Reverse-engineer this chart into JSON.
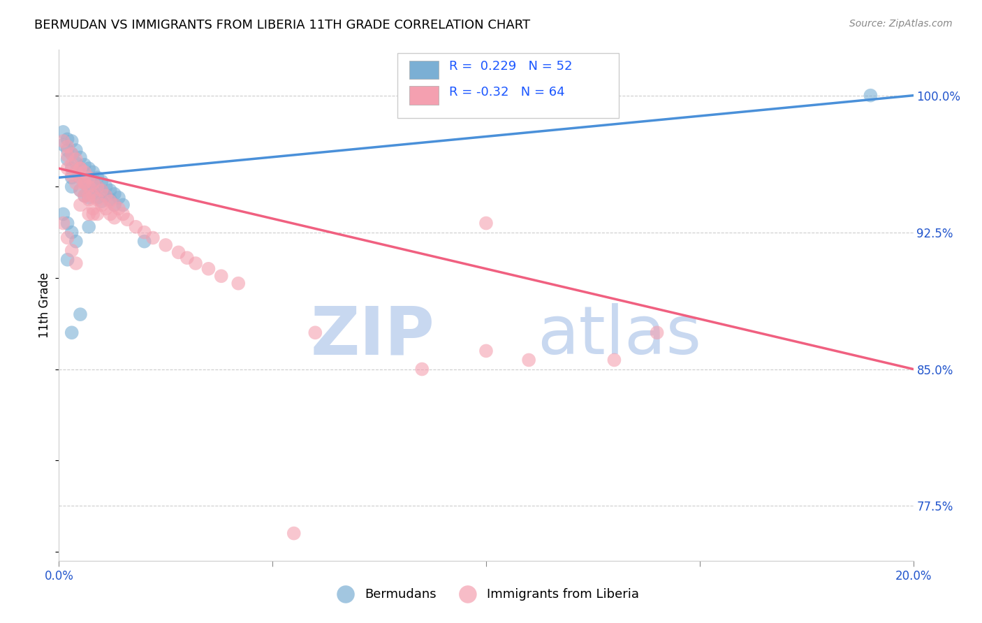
{
  "title": "BERMUDAN VS IMMIGRANTS FROM LIBERIA 11TH GRADE CORRELATION CHART",
  "source": "Source: ZipAtlas.com",
  "ylabel": "11th Grade",
  "ytick_labels": [
    "77.5%",
    "85.0%",
    "92.5%",
    "100.0%"
  ],
  "ytick_values": [
    0.775,
    0.85,
    0.925,
    1.0
  ],
  "xmin": 0.0,
  "xmax": 0.2,
  "ymin": 0.745,
  "ymax": 1.025,
  "bermuda_R": 0.229,
  "bermuda_N": 52,
  "liberia_R": -0.32,
  "liberia_N": 64,
  "bermuda_color": "#7bafd4",
  "liberia_color": "#f4a0b0",
  "trend_blue": "#4a90d9",
  "trend_pink": "#f06080",
  "legend_color": "#1a56ff",
  "watermark_color": "#c8d8f0",
  "blue_scatter_x": [
    0.001,
    0.001,
    0.002,
    0.002,
    0.002,
    0.003,
    0.003,
    0.003,
    0.003,
    0.003,
    0.004,
    0.004,
    0.004,
    0.005,
    0.005,
    0.005,
    0.005,
    0.006,
    0.006,
    0.006,
    0.006,
    0.007,
    0.007,
    0.007,
    0.007,
    0.008,
    0.008,
    0.008,
    0.009,
    0.009,
    0.009,
    0.01,
    0.01,
    0.01,
    0.011,
    0.011,
    0.012,
    0.012,
    0.013,
    0.013,
    0.014,
    0.015,
    0.001,
    0.002,
    0.003,
    0.004,
    0.005,
    0.007,
    0.02,
    0.002,
    0.003,
    0.19
  ],
  "blue_scatter_y": [
    0.98,
    0.973,
    0.976,
    0.97,
    0.965,
    0.975,
    0.968,
    0.96,
    0.955,
    0.95,
    0.97,
    0.963,
    0.958,
    0.966,
    0.96,
    0.955,
    0.948,
    0.962,
    0.957,
    0.952,
    0.945,
    0.96,
    0.955,
    0.95,
    0.944,
    0.958,
    0.953,
    0.947,
    0.955,
    0.95,
    0.944,
    0.953,
    0.948,
    0.942,
    0.95,
    0.945,
    0.948,
    0.943,
    0.946,
    0.94,
    0.944,
    0.94,
    0.935,
    0.93,
    0.925,
    0.92,
    0.88,
    0.928,
    0.92,
    0.91,
    0.87,
    1.0
  ],
  "pink_scatter_x": [
    0.001,
    0.002,
    0.002,
    0.002,
    0.003,
    0.003,
    0.003,
    0.004,
    0.004,
    0.004,
    0.005,
    0.005,
    0.005,
    0.005,
    0.006,
    0.006,
    0.006,
    0.007,
    0.007,
    0.007,
    0.007,
    0.008,
    0.008,
    0.008,
    0.009,
    0.009,
    0.009,
    0.01,
    0.01,
    0.011,
    0.011,
    0.012,
    0.012,
    0.013,
    0.013,
    0.014,
    0.015,
    0.016,
    0.018,
    0.02,
    0.022,
    0.025,
    0.028,
    0.03,
    0.032,
    0.035,
    0.038,
    0.042,
    0.001,
    0.002,
    0.003,
    0.004,
    0.005,
    0.006,
    0.007,
    0.008,
    0.06,
    0.1,
    0.13,
    0.14,
    0.1,
    0.085,
    0.055,
    0.11
  ],
  "pink_scatter_y": [
    0.975,
    0.972,
    0.967,
    0.96,
    0.968,
    0.962,
    0.956,
    0.965,
    0.958,
    0.952,
    0.96,
    0.955,
    0.948,
    0.94,
    0.958,
    0.952,
    0.945,
    0.955,
    0.95,
    0.943,
    0.935,
    0.952,
    0.945,
    0.938,
    0.95,
    0.943,
    0.935,
    0.948,
    0.94,
    0.945,
    0.938,
    0.942,
    0.935,
    0.94,
    0.933,
    0.938,
    0.935,
    0.932,
    0.928,
    0.925,
    0.922,
    0.918,
    0.914,
    0.911,
    0.908,
    0.905,
    0.901,
    0.897,
    0.93,
    0.922,
    0.915,
    0.908,
    0.96,
    0.952,
    0.945,
    0.935,
    0.87,
    0.86,
    0.855,
    0.87,
    0.93,
    0.85,
    0.76,
    0.855
  ],
  "blue_trend_y0": 0.955,
  "blue_trend_y1": 1.0,
  "pink_trend_y0": 0.96,
  "pink_trend_y1": 0.85
}
